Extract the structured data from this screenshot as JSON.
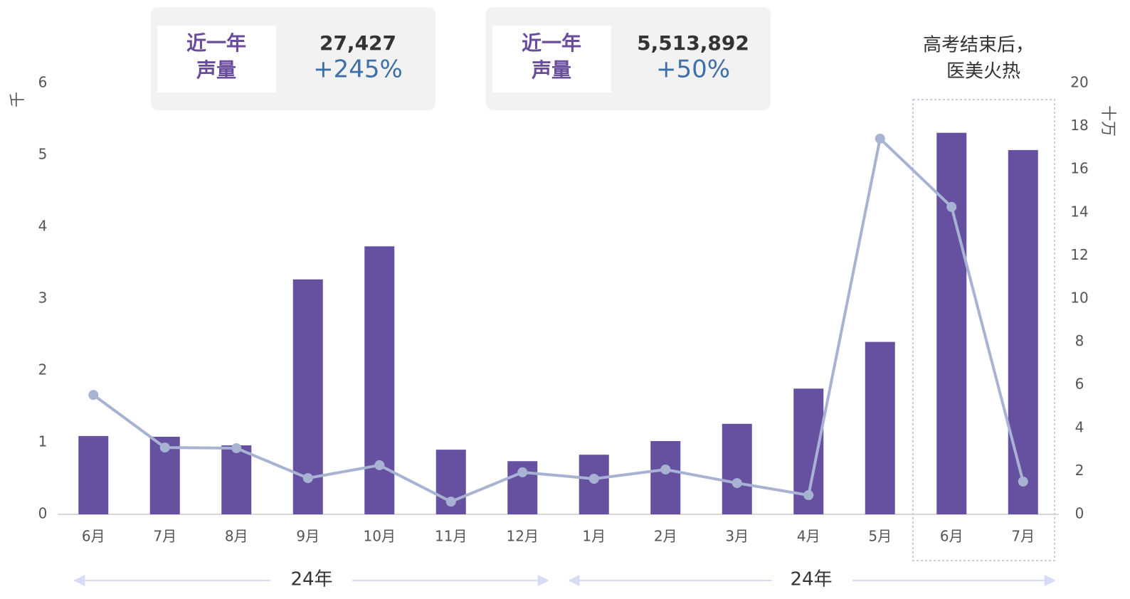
{
  "chart_data": {
    "type": "bar",
    "categories": [
      "6月",
      "7月",
      "8月",
      "9月",
      "10月",
      "11月",
      "12月",
      "1月",
      "2月",
      "3月",
      "4月",
      "5月",
      "6月",
      "7月"
    ],
    "series": [
      {
        "type": "bar",
        "color": "#6650a0",
        "values": [
          1.09,
          1.08,
          0.96,
          3.27,
          3.73,
          0.9,
          0.74,
          0.83,
          1.02,
          1.26,
          1.75,
          2.4,
          5.31,
          5.07
        ]
      },
      {
        "type": "line",
        "axis": "y2",
        "color": "#a8b3d3",
        "values": [
          5.54,
          3.1,
          3.07,
          1.68,
          2.28,
          0.59,
          1.95,
          1.65,
          2.08,
          1.45,
          0.89,
          17.43,
          14.26,
          1.52
        ]
      }
    ],
    "ylim": [
      0,
      6
    ],
    "yticks": [
      0,
      1,
      2,
      3,
      4,
      5,
      6
    ],
    "y_label": "千",
    "y2lim": [
      0,
      20
    ],
    "y2ticks": [
      0,
      2,
      4,
      6,
      8,
      10,
      12,
      14,
      16,
      18,
      20
    ],
    "y2_label": "十万",
    "annotation": [
      "高考结束后，",
      "医美火热"
    ],
    "year_labels": [
      "24年",
      "24年"
    ]
  },
  "stat_cards": [
    {
      "label": [
        "近一年",
        "声量"
      ],
      "count": "27,427",
      "growth": "+245%"
    },
    {
      "label": [
        "近一年",
        "声量"
      ],
      "count": "5,513,892",
      "growth": "+50%"
    }
  ]
}
